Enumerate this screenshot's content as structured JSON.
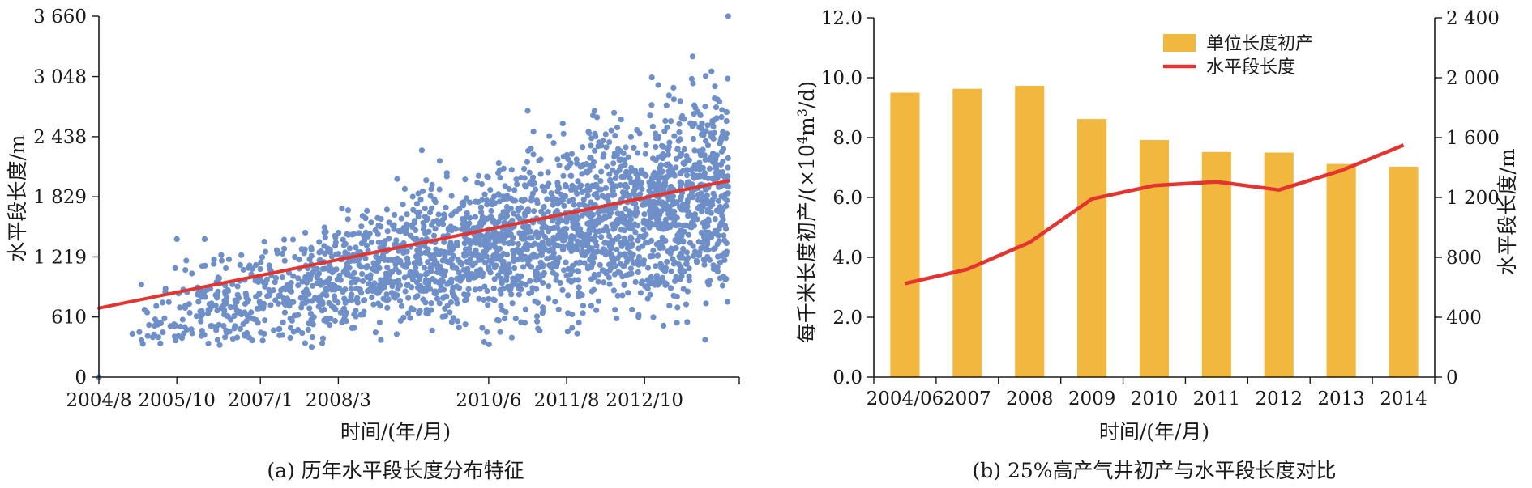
{
  "chart_data": [
    {
      "type": "scatter",
      "caption": "(a) 历年水平段长度分布特征",
      "xlabel": "时间/(年/月)",
      "ylabel": "水平段长度/m",
      "x_ticks": [
        "2004/8",
        "2005/10",
        "2007/1",
        "2008/3",
        "2010/6",
        "2011/8",
        "2012/10"
      ],
      "y_ticks": [
        0,
        610,
        1219,
        1829,
        2438,
        3048,
        3660
      ],
      "y_tick_labels": [
        "0",
        "610",
        "1 219",
        "1 829",
        "2 438",
        "3 048",
        "3 660"
      ],
      "ylim": [
        0,
        3660
      ],
      "xlim": [
        "2004/8",
        "2014/3"
      ],
      "series": [
        {
          "marker_color": "#6f8fc8",
          "points_note_sample": [
            [
              "2004/8",
              0
            ],
            [
              "2005/2",
              440
            ],
            [
              "2005/6",
              520
            ],
            [
              "2005/10",
              1400
            ],
            [
              "2006/3",
              1400
            ],
            [
              "2006/6",
              700
            ],
            [
              "2007/1",
              1000
            ],
            [
              "2007/8",
              1100
            ],
            [
              "2008/3",
              1250
            ],
            [
              "2009/1",
              1500
            ],
            [
              "2009/6",
              2300
            ],
            [
              "2010/6",
              1500
            ],
            [
              "2010/8",
              2100
            ],
            [
              "2011/1",
              2700
            ],
            [
              "2011/8",
              1600
            ],
            [
              "2012/1",
              2700
            ],
            [
              "2012/10",
              1800
            ],
            [
              "2013/6",
              2200
            ],
            [
              "2013/10",
              3100
            ],
            [
              "2014/1",
              3660
            ]
          ]
        }
      ],
      "trendline": {
        "color": "#e3342f",
        "start": [
          "2004/8",
          700
        ],
        "end": [
          "2014/1",
          1990
        ]
      },
      "grid": false
    },
    {
      "type": "bar",
      "caption": "(b) 25%高产气井初产与水平段长度对比",
      "xlabel": "时间/(年/月)",
      "ylabel_left": "每千米长度初产/(×10⁴m³/d)",
      "ylabel_right": "水平段长度/m",
      "categories": [
        "2004/06",
        "2007",
        "2008",
        "2009",
        "2010",
        "2011",
        "2012",
        "2013",
        "2014"
      ],
      "ylim_left": [
        0,
        12.0
      ],
      "ylim_right": [
        0,
        2400
      ],
      "y_left_ticks": [
        "0.0",
        "2.0",
        "4.0",
        "6.0",
        "8.0",
        "10.0",
        "12.0"
      ],
      "y_right_ticks": [
        "0",
        "400",
        "800",
        "1 200",
        "1 600",
        "2 000",
        "2 400"
      ],
      "series": [
        {
          "name": "单位长度初产",
          "kind": "bar",
          "axis": "left",
          "color": "#f2b73f",
          "values": [
            9.5,
            9.63,
            9.73,
            8.62,
            7.92,
            7.52,
            7.5,
            7.12,
            7.03
          ]
        },
        {
          "name": "水平段长度",
          "kind": "line",
          "axis": "right",
          "color": "#e3342f",
          "values": [
            625,
            720,
            900,
            1190,
            1280,
            1305,
            1250,
            1380,
            1550
          ]
        }
      ],
      "legend_position": "top-right",
      "grid": false
    }
  ]
}
